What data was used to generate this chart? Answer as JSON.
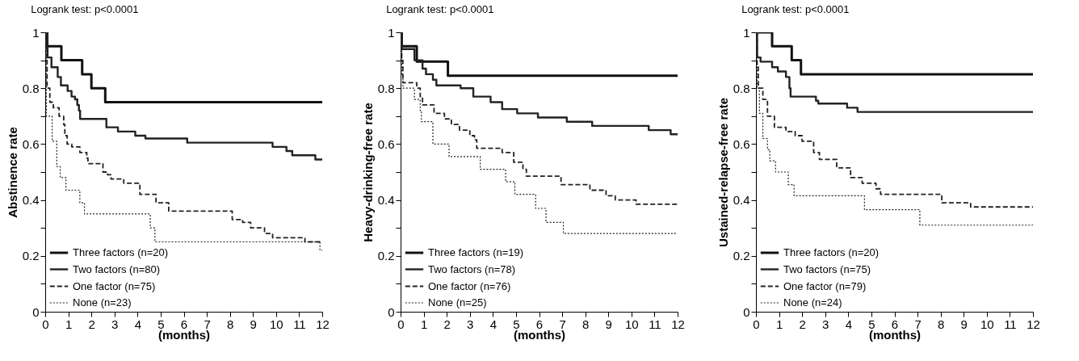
{
  "chart_data": [
    {
      "type": "step",
      "title": "Logrank test:  p<0.0001",
      "xlabel": "(months)",
      "ylabel": "Abstinence rate",
      "xlim": [
        0,
        12
      ],
      "ylim": [
        0,
        1
      ],
      "xticks": [
        0,
        1,
        2,
        3,
        4,
        5,
        6,
        7,
        8,
        9,
        10,
        11,
        12
      ],
      "yticks": [
        0,
        {
          "value": 0.1,
          "label": null
        },
        0.2,
        {
          "value": 0.3,
          "label": null
        },
        0.4,
        {
          "value": 0.5,
          "label": null
        },
        0.6,
        {
          "value": 0.7,
          "label": null
        },
        0.8,
        {
          "value": 0.9,
          "label": null
        },
        1
      ],
      "grid": false,
      "legend": "bottom left",
      "series": [
        {
          "name": "Three factors (n=20)",
          "color": "#111111",
          "line_style": "solid",
          "x": [
            0,
            0.05,
            0.7,
            1.6,
            2.0,
            2.6,
            12
          ],
          "values": [
            1,
            0.95,
            0.9,
            0.85,
            0.8,
            0.75,
            0.75
          ]
        },
        {
          "name": "Two factors (n=80)",
          "color": "#222222",
          "line_style": "solid",
          "x": [
            0,
            0.1,
            0.27,
            0.54,
            0.68,
            0.97,
            1.14,
            1.29,
            1.39,
            1.46,
            1.51,
            2.65,
            3.15,
            3.9,
            4.34,
            6.15,
            9.85,
            10.45,
            10.7,
            11.7,
            12
          ],
          "values": [
            1,
            0.91,
            0.875,
            0.84,
            0.81,
            0.79,
            0.77,
            0.76,
            0.74,
            0.72,
            0.69,
            0.66,
            0.645,
            0.63,
            0.62,
            0.605,
            0.59,
            0.575,
            0.56,
            0.545,
            0.545
          ]
        },
        {
          "name": "One factor (n=75)",
          "color": "#222222",
          "line_style": "dashed",
          "x": [
            0,
            0.03,
            0.08,
            0.2,
            0.35,
            0.6,
            0.8,
            0.85,
            0.95,
            1.15,
            1.5,
            1.8,
            1.85,
            2.5,
            2.7,
            2.85,
            3.4,
            4.1,
            4.8,
            5.35,
            8.1,
            8.55,
            8.9,
            9.5,
            9.85,
            11.25,
            12
          ],
          "values": [
            1,
            0.9,
            0.8,
            0.75,
            0.73,
            0.7,
            0.67,
            0.63,
            0.6,
            0.59,
            0.57,
            0.55,
            0.53,
            0.5,
            0.49,
            0.475,
            0.46,
            0.42,
            0.39,
            0.36,
            0.33,
            0.32,
            0.3,
            0.28,
            0.265,
            0.25,
            0.25
          ]
        },
        {
          "name": "None (n=23)",
          "color": "#222222",
          "line_style": "dotted",
          "x": [
            0,
            0.05,
            0.3,
            0.5,
            0.65,
            0.9,
            1.5,
            1.7,
            4.55,
            4.75,
            11.9,
            12
          ],
          "values": [
            1,
            0.7,
            0.61,
            0.52,
            0.48,
            0.435,
            0.39,
            0.35,
            0.3,
            0.25,
            0.22,
            0.22
          ]
        }
      ]
    },
    {
      "type": "step",
      "title": "Logrank test:  p<0.0001",
      "xlabel": "(months)",
      "ylabel": "Heavy-drinking-free rate",
      "xlim": [
        0,
        12
      ],
      "ylim": [
        0,
        1
      ],
      "xticks": [
        0,
        1,
        2,
        3,
        4,
        5,
        6,
        7,
        8,
        9,
        10,
        11,
        12
      ],
      "yticks": [
        0,
        {
          "value": 0.1,
          "label": null
        },
        0.2,
        {
          "value": 0.3,
          "label": null
        },
        0.4,
        {
          "value": 0.5,
          "label": null
        },
        0.6,
        {
          "value": 0.7,
          "label": null
        },
        0.8,
        {
          "value": 0.9,
          "label": null
        },
        1
      ],
      "grid": false,
      "legend": "bottom left",
      "series": [
        {
          "name": "Three factors (n=19)",
          "color": "#111111",
          "line_style": "solid",
          "x": [
            0,
            0.05,
            0.7,
            2.05,
            12
          ],
          "values": [
            1,
            0.95,
            0.895,
            0.845,
            0.845
          ]
        },
        {
          "name": "Two factors (n=78)",
          "color": "#222222",
          "line_style": "solid",
          "x": [
            0,
            0.05,
            0.6,
            0.95,
            1.1,
            1.4,
            1.55,
            2.6,
            3.15,
            3.9,
            4.4,
            5.05,
            5.95,
            7.2,
            8.3,
            10.75,
            11.7,
            12
          ],
          "values": [
            1,
            0.94,
            0.9,
            0.87,
            0.85,
            0.83,
            0.81,
            0.8,
            0.77,
            0.75,
            0.725,
            0.71,
            0.695,
            0.68,
            0.665,
            0.65,
            0.635,
            0.635
          ]
        },
        {
          "name": "One factor (n=76)",
          "color": "#222222",
          "line_style": "dashed",
          "x": [
            0,
            0.05,
            0.1,
            0.7,
            0.85,
            0.95,
            1.45,
            1.9,
            2.2,
            2.55,
            3.0,
            3.2,
            3.3,
            4.4,
            4.9,
            5.3,
            5.45,
            6.95,
            8.2,
            8.9,
            9.3,
            10.2,
            12
          ],
          "values": [
            1,
            0.9,
            0.82,
            0.8,
            0.77,
            0.74,
            0.71,
            0.69,
            0.67,
            0.65,
            0.63,
            0.615,
            0.585,
            0.57,
            0.535,
            0.51,
            0.485,
            0.455,
            0.435,
            0.415,
            0.4,
            0.385,
            0.385
          ]
        },
        {
          "name": "None (n=25)",
          "color": "#222222",
          "line_style": "dotted",
          "x": [
            0,
            0.05,
            0.1,
            0.6,
            0.85,
            0.9,
            1.4,
            2.1,
            3.45,
            4.55,
            4.95,
            5.85,
            6.3,
            7.05,
            12
          ],
          "values": [
            1,
            0.85,
            0.8,
            0.76,
            0.72,
            0.68,
            0.6,
            0.555,
            0.51,
            0.465,
            0.42,
            0.37,
            0.32,
            0.28,
            0.28
          ]
        }
      ]
    },
    {
      "type": "step",
      "title": "Logrank test:  p<0.0001",
      "xlabel": "(months)",
      "ylabel": "Ustained-relapse-free rate",
      "xlim": [
        0,
        12
      ],
      "ylim": [
        0,
        1
      ],
      "xticks": [
        0,
        1,
        2,
        3,
        4,
        5,
        6,
        7,
        8,
        9,
        10,
        11,
        12
      ],
      "yticks": [
        0,
        {
          "value": 0.1,
          "label": null
        },
        0.2,
        {
          "value": 0.3,
          "label": null
        },
        0.4,
        {
          "value": 0.5,
          "label": null
        },
        0.6,
        {
          "value": 0.7,
          "label": null
        },
        0.8,
        {
          "value": 0.9,
          "label": null
        },
        1
      ],
      "grid": false,
      "legend": "bottom left",
      "series": [
        {
          "name": "Three factors (n=20)",
          "color": "#111111",
          "line_style": "solid",
          "x": [
            0,
            0.7,
            1.55,
            1.95,
            12
          ],
          "values": [
            1,
            0.95,
            0.9,
            0.85,
            0.85
          ]
        },
        {
          "name": "Two factors (n=75)",
          "color": "#222222",
          "line_style": "solid",
          "x": [
            0,
            0.05,
            0.2,
            0.7,
            0.95,
            1.3,
            1.45,
            1.5,
            2.6,
            2.7,
            3.95,
            4.4,
            12
          ],
          "values": [
            1,
            0.91,
            0.895,
            0.875,
            0.86,
            0.84,
            0.8,
            0.77,
            0.755,
            0.745,
            0.73,
            0.715,
            0.715
          ]
        },
        {
          "name": "One factor (n=79)",
          "color": "#222222",
          "line_style": "dashed",
          "x": [
            0,
            0.05,
            0.1,
            0.3,
            0.5,
            0.8,
            1.3,
            1.7,
            2.0,
            2.5,
            2.75,
            3.5,
            4.1,
            4.6,
            5.2,
            5.4,
            8.05,
            9.3,
            12
          ],
          "values": [
            1,
            0.88,
            0.8,
            0.76,
            0.7,
            0.66,
            0.645,
            0.63,
            0.61,
            0.57,
            0.545,
            0.515,
            0.48,
            0.46,
            0.44,
            0.42,
            0.39,
            0.375,
            0.375
          ]
        },
        {
          "name": "None (n=24)",
          "color": "#222222",
          "line_style": "dotted",
          "x": [
            0,
            0.05,
            0.15,
            0.3,
            0.5,
            0.6,
            0.85,
            1.4,
            1.65,
            4.7,
            7.1,
            12
          ],
          "values": [
            1,
            0.8,
            0.71,
            0.62,
            0.58,
            0.54,
            0.5,
            0.455,
            0.415,
            0.365,
            0.31,
            0.31
          ]
        }
      ]
    }
  ]
}
